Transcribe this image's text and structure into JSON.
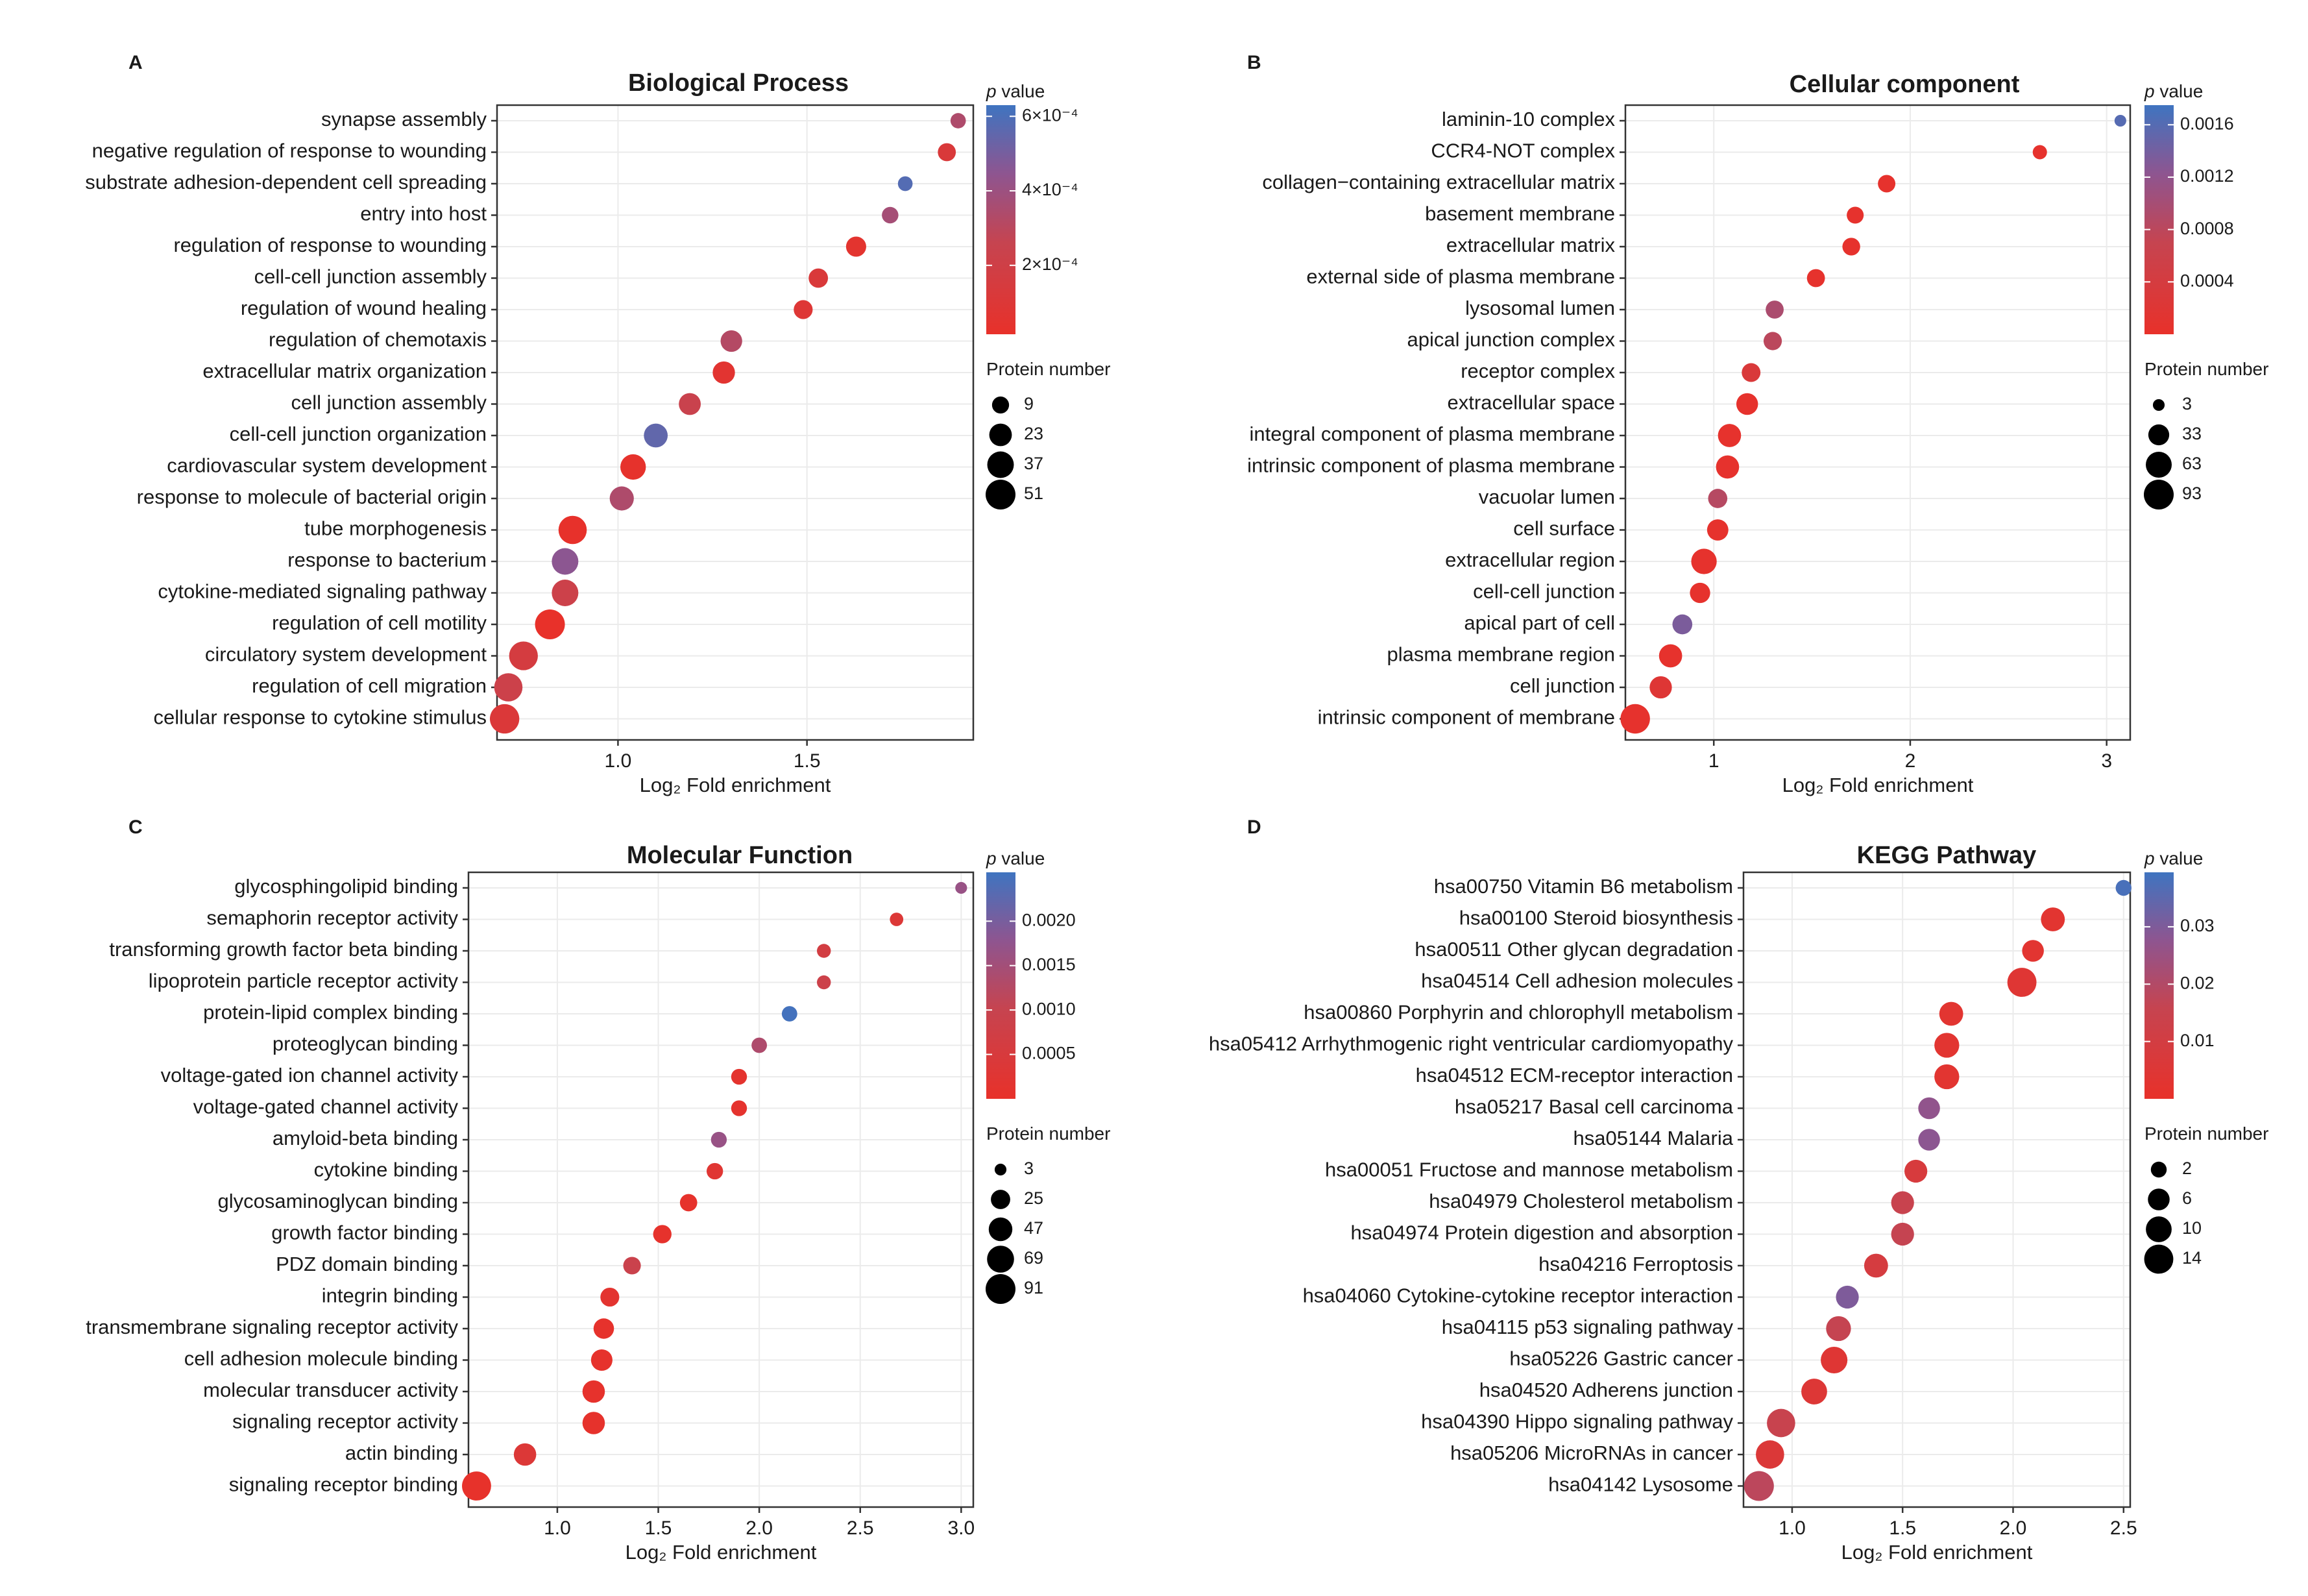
{
  "figure": {
    "x_axis_label": "Log₂ Fold enrichment",
    "pvalue_legend_title": "p value",
    "size_legend_title": "Protein number"
  },
  "colors": {
    "low_p": "#e8312a",
    "mid_p": "#8e5590",
    "high_p": "#3f74c0",
    "grid": "#ebebeb",
    "frame": "#333333"
  },
  "chart_data": [
    {
      "type": "scatter",
      "panel": "A",
      "title": "Biological Process",
      "xlabel": "Log₂ Fold enrichment",
      "xlim": [
        0.68,
        1.94
      ],
      "xticks": [
        1.0,
        1.5
      ],
      "xtick_labels": [
        "1.0",
        "1.5"
      ],
      "categories": [
        "synapse assembly",
        "negative regulation of response to wounding",
        "substrate adhesion-dependent cell spreading",
        "entry into host",
        "regulation of response to wounding",
        "cell-cell junction assembly",
        "regulation of wound healing",
        "regulation of chemotaxis",
        "extracellular matrix organization",
        "cell junction assembly",
        "cell-cell junction organization",
        "cardiovascular system development",
        "response to molecule of bacterial origin",
        "tube morphogenesis",
        "response to bacterium",
        "cytokine-mediated signaling pathway",
        "regulation of cell motility",
        "circulatory system development",
        "regulation of cell migration",
        "cellular response to cytokine stimulus"
      ],
      "x": [
        1.9,
        1.87,
        1.76,
        1.72,
        1.63,
        1.53,
        1.49,
        1.3,
        1.28,
        1.19,
        1.1,
        1.04,
        1.01,
        0.88,
        0.86,
        0.86,
        0.82,
        0.75,
        0.71,
        0.7
      ],
      "protein_number": [
        6,
        11,
        5,
        8,
        16,
        14,
        13,
        20,
        22,
        21,
        27,
        33,
        28,
        44,
        37,
        37,
        51,
        46,
        44,
        49
      ],
      "p_value": [
        0.00034,
        0.00012,
        0.00058,
        0.00037,
        5e-05,
        0.00012,
        9e-05,
        0.00032,
        6e-05,
        0.00024,
        0.00055,
        3e-05,
        0.00034,
        2e-05,
        0.00045,
        0.00022,
        1e-05,
        0.00016,
        0.00022,
        0.00011
      ],
      "pvalue_scale": {
        "domain": [
          1.5e-05,
          0.00063
        ],
        "ticks": [
          0.0002,
          0.0004,
          0.0006
        ],
        "tick_labels": [
          "2×10⁻⁴",
          "4×10⁻⁴",
          "6×10⁻⁴"
        ]
      },
      "size_legend": {
        "values": [
          9,
          23,
          37,
          51
        ],
        "labels": [
          "9",
          "23",
          "37",
          "51"
        ],
        "max": 51
      }
    },
    {
      "type": "scatter",
      "panel": "B",
      "title": "Cellular component",
      "xlabel": "Log₂ Fold enrichment",
      "xlim": [
        0.55,
        3.12
      ],
      "xticks": [
        1,
        2,
        3
      ],
      "xtick_labels": [
        "1",
        "2",
        "3"
      ],
      "categories": [
        "laminin-10 complex",
        "CCR4-NOT complex",
        "collagen−containing extracellular matrix",
        "basement membrane",
        "extracellular matrix",
        "external side of plasma membrane",
        "lysosomal lumen",
        "apical junction complex",
        "receptor complex",
        "extracellular space",
        "integral component of plasma membrane",
        "intrinsic component of plasma membrane",
        "vacuolar lumen",
        "cell surface",
        "extracellular region",
        "cell-cell junction",
        "apical part of cell",
        "plasma membrane region",
        "cell junction",
        "intrinsic component of membrane"
      ],
      "x": [
        3.07,
        2.66,
        1.88,
        1.72,
        1.7,
        1.52,
        1.31,
        1.3,
        1.19,
        1.17,
        1.08,
        1.07,
        1.02,
        1.02,
        0.95,
        0.93,
        0.84,
        0.78,
        0.73,
        0.6
      ],
      "protein_number": [
        3,
        8,
        18,
        16,
        19,
        20,
        20,
        21,
        23,
        37,
        45,
        45,
        25,
        35,
        60,
        30,
        28,
        45,
        40,
        90
      ],
      "p_value": [
        0.0016,
        5e-05,
        5e-05,
        5e-05,
        5e-05,
        5e-05,
        0.00095,
        0.0008,
        0.0003,
        5e-05,
        5e-05,
        5e-05,
        0.00085,
        5e-05,
        5e-05,
        5e-05,
        0.00135,
        5e-05,
        0.0002,
        5e-05
      ],
      "pvalue_scale": {
        "domain": [
          0.0,
          0.00175
        ],
        "ticks": [
          0.0004,
          0.0008,
          0.0012,
          0.0016
        ],
        "tick_labels": [
          "0.0004",
          "0.0008",
          "0.0012",
          "0.0016"
        ]
      },
      "size_legend": {
        "values": [
          3,
          33,
          63,
          93
        ],
        "labels": [
          "3",
          "33",
          "63",
          "93"
        ],
        "max": 93
      }
    },
    {
      "type": "scatter",
      "panel": "C",
      "title": "Molecular Function",
      "xlabel": "Log₂ Fold enrichment",
      "xlim": [
        0.56,
        3.06
      ],
      "xticks": [
        1.0,
        1.5,
        2.0,
        2.5,
        3.0
      ],
      "xtick_labels": [
        "1.0",
        "1.5",
        "2.0",
        "2.5",
        "3.0"
      ],
      "categories": [
        "glycosphingolipid binding",
        "semaphorin receptor activity",
        "transforming growth factor beta binding",
        "lipoprotein particle receptor activity",
        "protein-lipid complex binding",
        "proteoglycan binding",
        "voltage-gated ion channel activity",
        "voltage-gated channel activity",
        "amyloid-beta binding",
        "cytokine binding",
        "glycosaminoglycan binding",
        "growth factor binding",
        "PDZ domain binding",
        "integrin binding",
        "transmembrane signaling receptor activity",
        "cell adhesion molecule binding",
        "molecular transducer activity",
        "signaling receptor activity",
        "actin binding",
        "signaling receptor binding"
      ],
      "x": [
        3.0,
        2.68,
        2.32,
        2.32,
        2.15,
        2.0,
        1.9,
        1.9,
        1.8,
        1.78,
        1.65,
        1.52,
        1.37,
        1.26,
        1.23,
        1.22,
        1.18,
        1.18,
        0.84,
        0.6
      ],
      "protein_number": [
        3,
        6,
        7,
        7,
        11,
        11,
        12,
        12,
        12,
        14,
        17,
        21,
        18,
        23,
        30,
        35,
        40,
        40,
        40,
        85
      ],
      "p_value": [
        0.00165,
        0.00035,
        0.00065,
        0.00085,
        0.0025,
        0.00135,
        0.00012,
        0.0001,
        0.00165,
        0.00025,
        5e-05,
        5e-05,
        0.0009,
        0.00015,
        5e-05,
        5e-05,
        5e-05,
        5e-05,
        0.00035,
        3e-05
      ],
      "pvalue_scale": {
        "domain": [
          0.0,
          0.00255
        ],
        "ticks": [
          0.0005,
          0.001,
          0.0015,
          0.002
        ],
        "tick_labels": [
          "0.0005",
          "0.0010",
          "0.0015",
          "0.0020"
        ]
      },
      "size_legend": {
        "values": [
          3,
          25,
          47,
          69,
          91
        ],
        "labels": [
          "3",
          "25",
          "47",
          "69",
          "91"
        ],
        "max": 91
      }
    },
    {
      "type": "scatter",
      "panel": "D",
      "title": "KEGG Pathway",
      "xlabel": "Log₂ Fold enrichment",
      "xlim": [
        0.78,
        2.53
      ],
      "xticks": [
        1.0,
        1.5,
        2.0,
        2.5
      ],
      "xtick_labels": [
        "1.0",
        "1.5",
        "2.0",
        "2.5"
      ],
      "categories": [
        "hsa00750 Vitamin B6 metabolism",
        "hsa00100 Steroid biosynthesis",
        "hsa00511 Other glycan degradation",
        "hsa04514 Cell adhesion molecules",
        "hsa00860 Porphyrin and chlorophyll metabolism",
        "hsa05412 Arrhythmogenic right ventricular cardiomyopathy",
        "hsa04512 ECM-receptor interaction",
        "hsa05217 Basal cell carcinoma",
        "hsa05144 Malaria",
        "hsa00051 Fructose and mannose metabolism",
        "hsa04979 Cholesterol metabolism",
        "hsa04974 Protein digestion and absorption",
        "hsa04216 Ferroptosis",
        "hsa04060 Cytokine-cytokine receptor interaction",
        "hsa04115 p53 signaling pathway",
        "hsa05226 Gastric cancer",
        "hsa04520 Adherens junction",
        "hsa04390 Hippo signaling pathway",
        "hsa05206 MicroRNAs in cancer",
        "hsa04142 Lysosome"
      ],
      "x": [
        2.5,
        2.18,
        2.09,
        2.04,
        1.72,
        1.7,
        1.7,
        1.62,
        1.62,
        1.56,
        1.5,
        1.5,
        1.38,
        1.25,
        1.21,
        1.19,
        1.1,
        0.95,
        0.9,
        0.85
      ],
      "protein_number": [
        2,
        8,
        6,
        14,
        8,
        9,
        9,
        6,
        6,
        7,
        7,
        7,
        8,
        7,
        9,
        11,
        10,
        13,
        13,
        15
      ],
      "p_value": [
        0.038,
        0.003,
        0.003,
        0.004,
        0.003,
        0.003,
        0.003,
        0.027,
        0.028,
        0.008,
        0.015,
        0.016,
        0.009,
        0.03,
        0.016,
        0.004,
        0.005,
        0.015,
        0.006,
        0.018
      ],
      "pvalue_scale": {
        "domain": [
          0.0,
          0.0395
        ],
        "ticks": [
          0.01,
          0.02,
          0.03
        ],
        "tick_labels": [
          "0.01",
          "0.02",
          "0.03"
        ]
      },
      "size_legend": {
        "values": [
          2,
          6,
          10,
          14
        ],
        "labels": [
          "2",
          "6",
          "10",
          "14"
        ],
        "max": 15
      }
    }
  ]
}
